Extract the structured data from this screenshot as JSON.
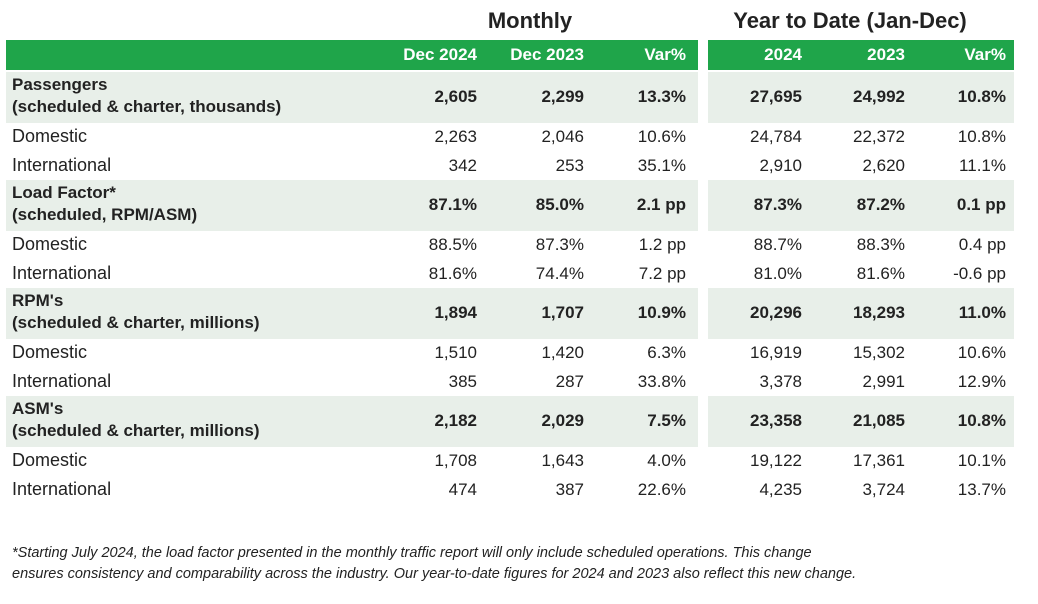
{
  "headers": {
    "monthly": "Monthly",
    "ytd": "Year to Date (Jan-Dec)"
  },
  "columns": [
    "Dec 2024",
    "Dec 2023",
    "Var%",
    "2024",
    "2023",
    "Var%"
  ],
  "rows": [
    {
      "label": [
        "Passengers",
        "(scheduled & charter, thousands)"
      ],
      "values": [
        "2,605",
        "2,299",
        "13.3%",
        "27,695",
        "24,992",
        "10.8%"
      ]
    },
    {
      "label": "Domestic",
      "values": [
        "2,263",
        "2,046",
        "10.6%",
        "24,784",
        "22,372",
        "10.8%"
      ]
    },
    {
      "label": "International",
      "values": [
        "342",
        "253",
        "35.1%",
        "2,910",
        "2,620",
        "11.1%"
      ]
    },
    {
      "label": [
        "Load Factor*",
        "(scheduled, RPM/ASM)"
      ],
      "values": [
        "87.1%",
        "85.0%",
        "2.1 pp",
        "87.3%",
        "87.2%",
        "0.1 pp"
      ]
    },
    {
      "label": "Domestic",
      "values": [
        "88.5%",
        "87.3%",
        "1.2 pp",
        "88.7%",
        "88.3%",
        "0.4 pp"
      ]
    },
    {
      "label": "International",
      "values": [
        "81.6%",
        "74.4%",
        "7.2 pp",
        "81.0%",
        "81.6%",
        "-0.6 pp"
      ]
    },
    {
      "label": [
        "RPM's",
        "(scheduled & charter, millions)"
      ],
      "values": [
        "1,894",
        "1,707",
        "10.9%",
        "20,296",
        "18,293",
        "11.0%"
      ]
    },
    {
      "label": "Domestic",
      "values": [
        "1,510",
        "1,420",
        "6.3%",
        "16,919",
        "15,302",
        "10.6%"
      ]
    },
    {
      "label": "International",
      "values": [
        "385",
        "287",
        "33.8%",
        "3,378",
        "2,991",
        "12.9%"
      ]
    },
    {
      "label": [
        "ASM's",
        "(scheduled & charter, millions)"
      ],
      "values": [
        "2,182",
        "2,029",
        "7.5%",
        "23,358",
        "21,085",
        "10.8%"
      ]
    },
    {
      "label": "Domestic",
      "values": [
        "1,708",
        "1,643",
        "4.0%",
        "19,122",
        "17,361",
        "10.1%"
      ]
    },
    {
      "label": "International",
      "values": [
        "474",
        "387",
        "22.6%",
        "4,235",
        "3,724",
        "13.7%"
      ]
    }
  ],
  "footnote": [
    "*Starting July 2024, the load factor presented in the monthly traffic report will only include scheduled operations. This change",
    "ensures consistency and comparability across the industry. Our year-to-date figures for 2024 and 2023 also reflect this new change."
  ]
}
